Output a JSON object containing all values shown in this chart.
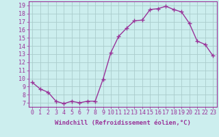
{
  "x": [
    0,
    1,
    2,
    3,
    4,
    5,
    6,
    7,
    8,
    9,
    10,
    11,
    12,
    13,
    14,
    15,
    16,
    17,
    18,
    19,
    20,
    21,
    22,
    23
  ],
  "y": [
    9.5,
    8.7,
    8.3,
    7.2,
    6.9,
    7.2,
    7.0,
    7.2,
    7.2,
    9.9,
    13.2,
    15.2,
    16.2,
    17.1,
    17.2,
    18.5,
    18.6,
    18.9,
    18.5,
    18.2,
    16.8,
    14.6,
    14.2,
    12.8
  ],
  "line_color": "#993399",
  "marker": "+",
  "marker_size": 4,
  "line_width": 1.0,
  "bg_color": "#cceeee",
  "grid_color": "#aacccc",
  "xlabel": "Windchill (Refroidissement éolien,°C)",
  "ylabel_ticks": [
    7,
    8,
    9,
    10,
    11,
    12,
    13,
    14,
    15,
    16,
    17,
    18,
    19
  ],
  "xlim": [
    -0.5,
    23.5
  ],
  "ylim": [
    6.5,
    19.5
  ],
  "xlabel_fontsize": 6.5,
  "tick_fontsize": 6,
  "tick_color": "#993399",
  "label_color": "#993399",
  "spine_color": "#993399"
}
